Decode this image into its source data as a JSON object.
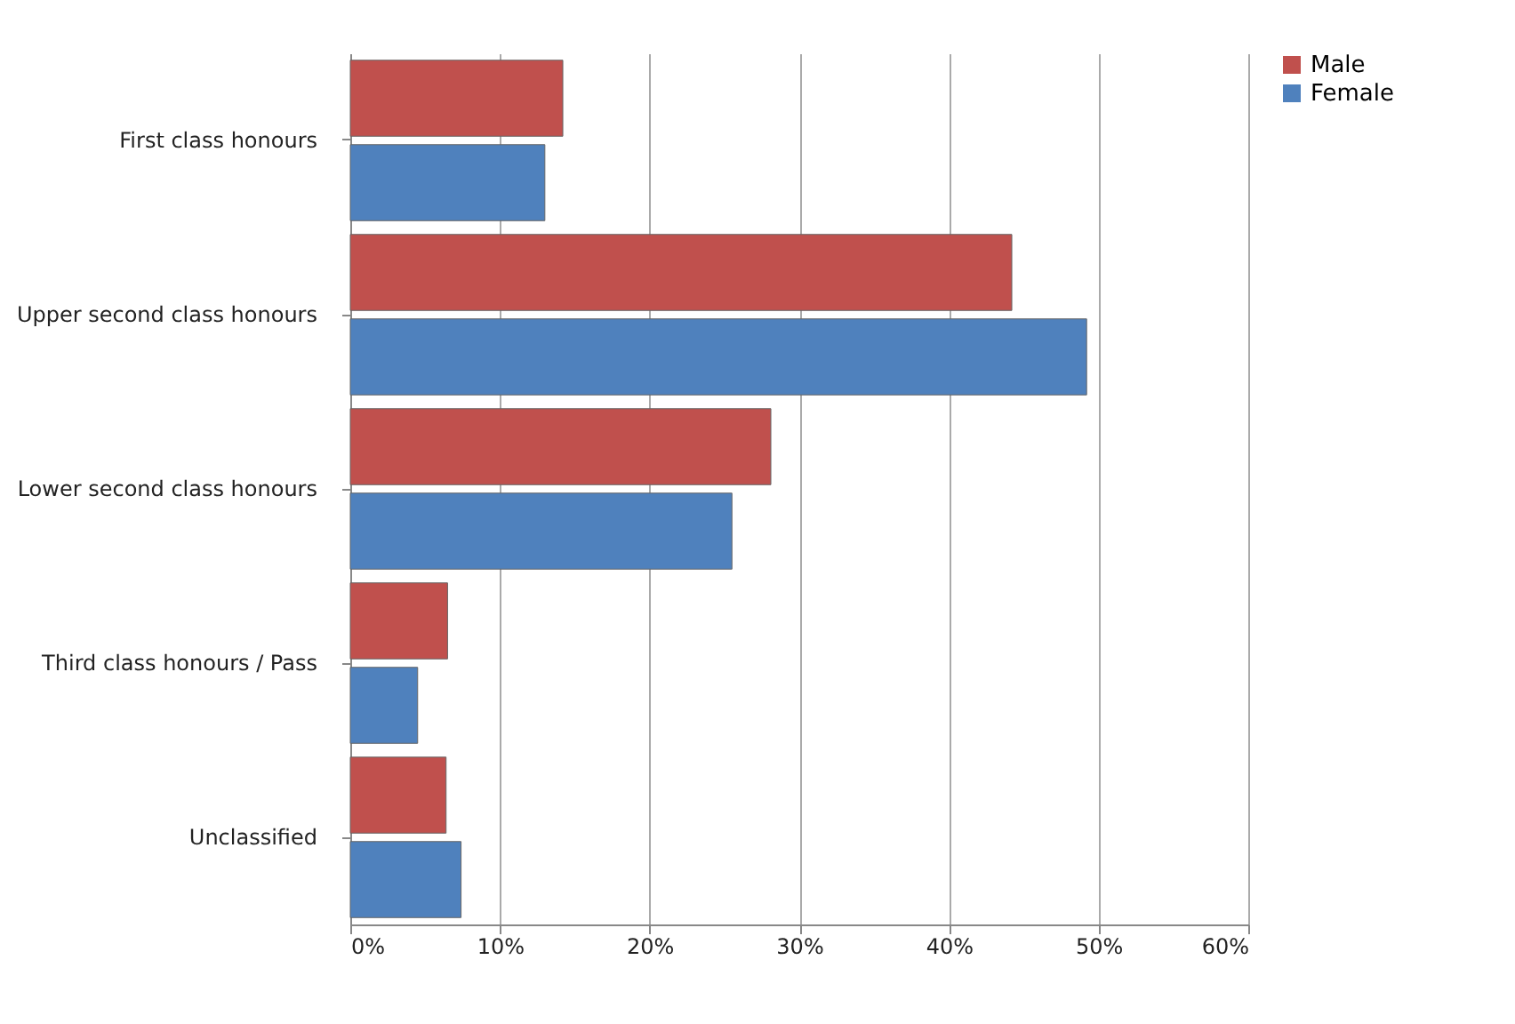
{
  "chart_data": {
    "type": "bar",
    "orientation": "horizontal",
    "categories": [
      "First class honours",
      "Upper second class honours",
      "Lower second class honours",
      "Third class honours / Pass",
      "Unclassified"
    ],
    "series": [
      {
        "name": "Male",
        "color": "#c0504d",
        "values": [
          14.2,
          44.2,
          28.1,
          6.5,
          6.4
        ]
      },
      {
        "name": "Female",
        "color": "#4f81bd",
        "values": [
          13.0,
          49.2,
          25.5,
          4.5,
          7.4
        ]
      }
    ],
    "xlim": [
      0,
      60
    ],
    "xticks": [
      {
        "value": 0,
        "label": "0%"
      },
      {
        "value": 10,
        "label": "10%"
      },
      {
        "value": 20,
        "label": "20%"
      },
      {
        "value": 30,
        "label": "30%"
      },
      {
        "value": 40,
        "label": "40%"
      },
      {
        "value": 50,
        "label": "50%"
      },
      {
        "value": 60,
        "label": "60%"
      }
    ],
    "grid": "x",
    "legend": "right"
  }
}
